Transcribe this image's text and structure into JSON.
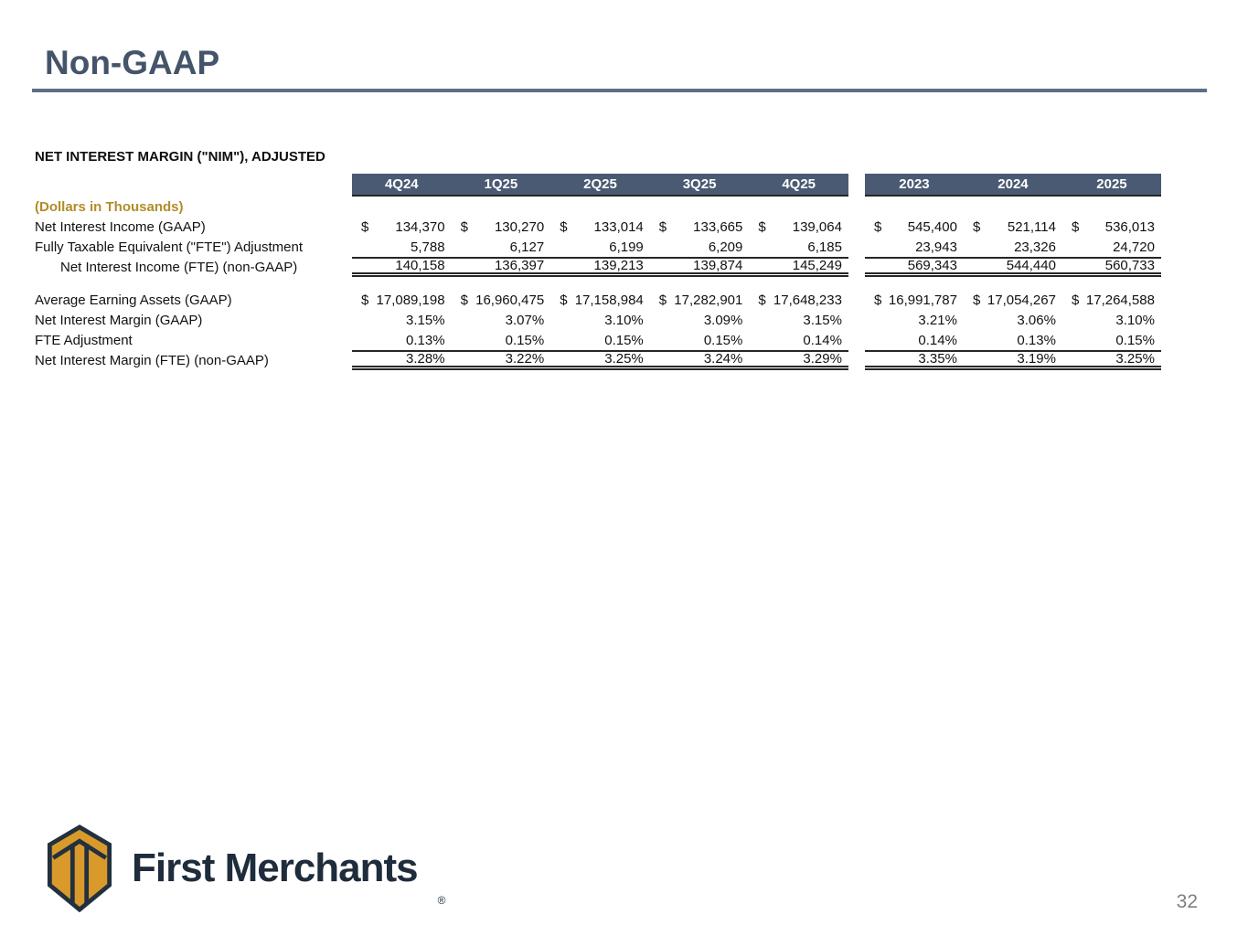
{
  "slide": {
    "title": "Non-GAAP",
    "page_number": "32"
  },
  "colors": {
    "title_text": "#44546A",
    "title_rule": "#5d6e87",
    "header_band_bg": "#4a5a73",
    "header_band_text": "#ffffff",
    "units_gold": "#b28c28",
    "logo_gold": "#D99A2B",
    "logo_navy": "#1e2c3c",
    "page_number_gray": "#7f7f7f"
  },
  "table": {
    "heading": "NET INTEREST MARGIN (\"NIM\"), ADJUSTED",
    "units_label": "(Dollars in Thousands)",
    "quarter_columns": [
      "4Q24",
      "1Q25",
      "2Q25",
      "3Q25",
      "4Q25"
    ],
    "year_columns": [
      "2023",
      "2024",
      "2025"
    ],
    "rows": [
      {
        "label": "Net Interest Income (GAAP)",
        "dollar": true,
        "q": [
          "134,370",
          "130,270",
          "133,014",
          "133,665",
          "139,064"
        ],
        "y": [
          "545,400",
          "521,114",
          "536,013"
        ]
      },
      {
        "label": "Fully Taxable Equivalent (\"FTE\") Adjustment",
        "q": [
          "5,788",
          "6,127",
          "6,199",
          "6,209",
          "6,185"
        ],
        "y": [
          "23,943",
          "23,326",
          "24,720"
        ]
      },
      {
        "label": "Net Interest Income (FTE) (non-GAAP)",
        "indent": true,
        "style": "total",
        "q": [
          "140,158",
          "136,397",
          "139,213",
          "139,874",
          "145,249"
        ],
        "y": [
          "569,343",
          "544,440",
          "560,733"
        ]
      },
      {
        "label": "Average Earning Assets (GAAP)",
        "dollar": true,
        "q": [
          "17,089,198",
          "16,960,475",
          "17,158,984",
          "17,282,901",
          "17,648,233"
        ],
        "y": [
          "16,991,787",
          "17,054,267",
          "17,264,588"
        ]
      },
      {
        "label": "Net Interest Margin (GAAP)",
        "q": [
          "3.15%",
          "3.07%",
          "3.10%",
          "3.09%",
          "3.15%"
        ],
        "y": [
          "3.21%",
          "3.06%",
          "3.10%"
        ]
      },
      {
        "label": "FTE Adjustment",
        "q": [
          "0.13%",
          "0.15%",
          "0.15%",
          "0.15%",
          "0.14%"
        ],
        "y": [
          "0.14%",
          "0.13%",
          "0.15%"
        ]
      },
      {
        "label": "Net Interest Margin (FTE) (non-GAAP)",
        "style": "total",
        "q": [
          "3.28%",
          "3.22%",
          "3.25%",
          "3.24%",
          "3.29%"
        ],
        "y": [
          "3.35%",
          "3.19%",
          "3.25%"
        ]
      }
    ]
  },
  "logo": {
    "text": "First Merchants",
    "registered": "®"
  }
}
